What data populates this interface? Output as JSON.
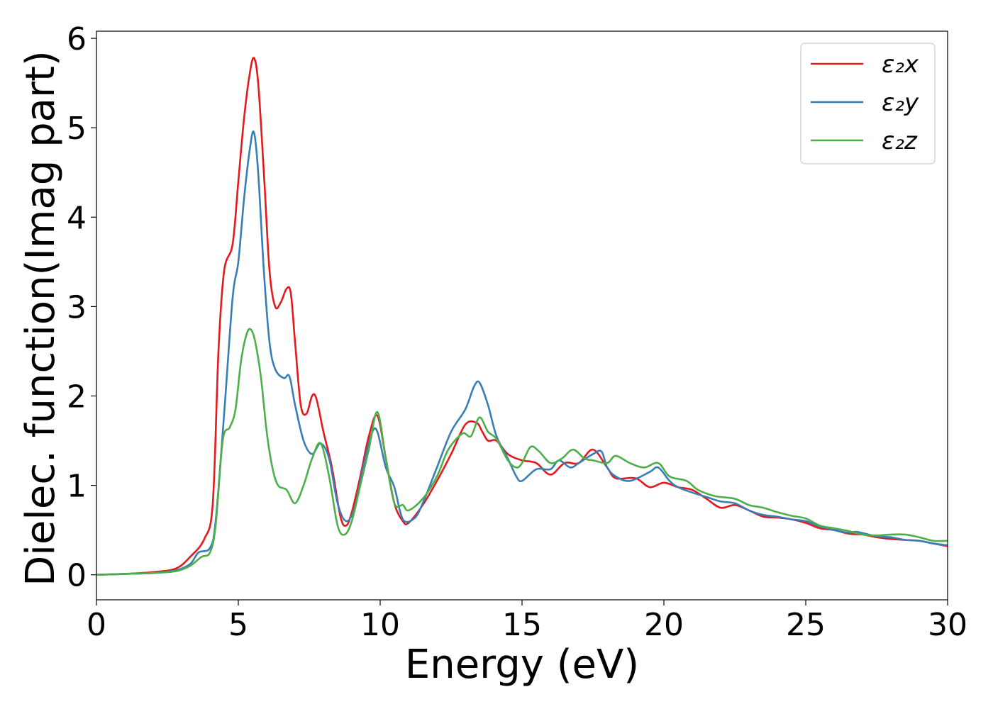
{
  "chart_data": {
    "type": "line",
    "xlabel": "Energy (eV)",
    "ylabel": "Dielec. function(Imag part)",
    "xlim": [
      0,
      30
    ],
    "ylim": [
      -0.28,
      6.08
    ],
    "xticks": [
      "0",
      "5",
      "10",
      "15",
      "20",
      "25",
      "30"
    ],
    "yticks": [
      "0",
      "1",
      "2",
      "3",
      "4",
      "5",
      "6"
    ],
    "grid": false,
    "legend_position": "top-right",
    "series": [
      {
        "name": "ε₂x",
        "color": "#e41a1c",
        "points": [
          [
            0,
            0.0
          ],
          [
            1,
            0.01
          ],
          [
            2,
            0.03
          ],
          [
            2.8,
            0.07
          ],
          [
            3.3,
            0.2
          ],
          [
            3.8,
            0.4
          ],
          [
            4.1,
            0.8
          ],
          [
            4.3,
            2.5
          ],
          [
            4.5,
            3.4
          ],
          [
            4.8,
            3.7
          ],
          [
            5.0,
            4.4
          ],
          [
            5.2,
            5.1
          ],
          [
            5.4,
            5.6
          ],
          [
            5.55,
            5.78
          ],
          [
            5.7,
            5.5
          ],
          [
            5.9,
            4.5
          ],
          [
            6.1,
            3.4
          ],
          [
            6.3,
            3.0
          ],
          [
            6.5,
            3.05
          ],
          [
            6.7,
            3.2
          ],
          [
            6.85,
            3.15
          ],
          [
            7.0,
            2.6
          ],
          [
            7.2,
            1.9
          ],
          [
            7.4,
            1.8
          ],
          [
            7.6,
            2.0
          ],
          [
            7.75,
            1.97
          ],
          [
            8.0,
            1.6
          ],
          [
            8.3,
            1.2
          ],
          [
            8.6,
            0.65
          ],
          [
            8.8,
            0.55
          ],
          [
            9.0,
            0.7
          ],
          [
            9.3,
            1.1
          ],
          [
            9.6,
            1.55
          ],
          [
            9.9,
            1.78
          ],
          [
            10.2,
            1.3
          ],
          [
            10.5,
            0.8
          ],
          [
            10.8,
            0.6
          ],
          [
            11.0,
            0.58
          ],
          [
            11.5,
            0.78
          ],
          [
            12.0,
            1.05
          ],
          [
            12.5,
            1.35
          ],
          [
            13.0,
            1.68
          ],
          [
            13.4,
            1.7
          ],
          [
            13.6,
            1.6
          ],
          [
            13.8,
            1.5
          ],
          [
            14.1,
            1.5
          ],
          [
            14.5,
            1.35
          ],
          [
            15.0,
            1.28
          ],
          [
            15.5,
            1.25
          ],
          [
            16.0,
            1.12
          ],
          [
            16.5,
            1.25
          ],
          [
            17.0,
            1.25
          ],
          [
            17.5,
            1.4
          ],
          [
            18.0,
            1.2
          ],
          [
            18.3,
            1.08
          ],
          [
            19.0,
            1.08
          ],
          [
            19.5,
            0.98
          ],
          [
            20.0,
            1.03
          ],
          [
            20.5,
            0.98
          ],
          [
            21.0,
            0.95
          ],
          [
            21.5,
            0.85
          ],
          [
            22.0,
            0.75
          ],
          [
            22.5,
            0.78
          ],
          [
            23.0,
            0.72
          ],
          [
            23.5,
            0.65
          ],
          [
            24.0,
            0.64
          ],
          [
            24.5,
            0.62
          ],
          [
            25.0,
            0.58
          ],
          [
            25.5,
            0.52
          ],
          [
            26.0,
            0.5
          ],
          [
            26.5,
            0.46
          ],
          [
            27.0,
            0.45
          ],
          [
            27.5,
            0.42
          ],
          [
            28.0,
            0.4
          ],
          [
            28.5,
            0.39
          ],
          [
            29.0,
            0.38
          ],
          [
            29.5,
            0.35
          ],
          [
            30.0,
            0.32
          ]
        ]
      },
      {
        "name": "ε₂y",
        "color": "#377eb8",
        "points": [
          [
            0,
            0.0
          ],
          [
            1,
            0.01
          ],
          [
            2,
            0.02
          ],
          [
            2.8,
            0.05
          ],
          [
            3.3,
            0.12
          ],
          [
            3.6,
            0.25
          ],
          [
            4.0,
            0.3
          ],
          [
            4.2,
            0.6
          ],
          [
            4.5,
            1.8
          ],
          [
            4.8,
            3.1
          ],
          [
            5.0,
            3.5
          ],
          [
            5.2,
            4.2
          ],
          [
            5.4,
            4.75
          ],
          [
            5.55,
            4.95
          ],
          [
            5.7,
            4.5
          ],
          [
            5.9,
            3.4
          ],
          [
            6.1,
            2.6
          ],
          [
            6.3,
            2.3
          ],
          [
            6.6,
            2.2
          ],
          [
            6.8,
            2.22
          ],
          [
            7.0,
            1.9
          ],
          [
            7.3,
            1.5
          ],
          [
            7.6,
            1.35
          ],
          [
            7.9,
            1.47
          ],
          [
            8.2,
            1.3
          ],
          [
            8.5,
            0.8
          ],
          [
            8.8,
            0.6
          ],
          [
            9.1,
            0.75
          ],
          [
            9.4,
            1.2
          ],
          [
            9.7,
            1.58
          ],
          [
            9.9,
            1.6
          ],
          [
            10.2,
            1.2
          ],
          [
            10.5,
            0.98
          ],
          [
            10.8,
            0.62
          ],
          [
            11.2,
            0.63
          ],
          [
            11.5,
            0.8
          ],
          [
            12.0,
            1.2
          ],
          [
            12.5,
            1.6
          ],
          [
            13.0,
            1.85
          ],
          [
            13.3,
            2.1
          ],
          [
            13.5,
            2.15
          ],
          [
            13.8,
            1.9
          ],
          [
            14.1,
            1.55
          ],
          [
            14.5,
            1.3
          ],
          [
            14.8,
            1.1
          ],
          [
            15.0,
            1.05
          ],
          [
            15.5,
            1.18
          ],
          [
            16.0,
            1.18
          ],
          [
            16.3,
            1.28
          ],
          [
            16.7,
            1.2
          ],
          [
            17.0,
            1.25
          ],
          [
            17.5,
            1.35
          ],
          [
            17.8,
            1.38
          ],
          [
            18.0,
            1.2
          ],
          [
            18.3,
            1.1
          ],
          [
            18.8,
            1.05
          ],
          [
            19.5,
            1.15
          ],
          [
            19.8,
            1.2
          ],
          [
            20.2,
            1.05
          ],
          [
            20.5,
            0.98
          ],
          [
            21.0,
            0.92
          ],
          [
            21.5,
            0.87
          ],
          [
            22.0,
            0.82
          ],
          [
            22.5,
            0.8
          ],
          [
            23.0,
            0.72
          ],
          [
            23.5,
            0.67
          ],
          [
            24.0,
            0.65
          ],
          [
            24.5,
            0.62
          ],
          [
            25.0,
            0.6
          ],
          [
            25.5,
            0.54
          ],
          [
            26.0,
            0.5
          ],
          [
            26.5,
            0.47
          ],
          [
            26.8,
            0.48
          ],
          [
            27.5,
            0.43
          ],
          [
            28.0,
            0.42
          ],
          [
            28.5,
            0.39
          ],
          [
            29.0,
            0.38
          ],
          [
            29.5,
            0.35
          ],
          [
            30.0,
            0.33
          ]
        ]
      },
      {
        "name": "ε₂z",
        "color": "#4daf4a",
        "points": [
          [
            0,
            0.0
          ],
          [
            1,
            0.01
          ],
          [
            2,
            0.02
          ],
          [
            2.8,
            0.04
          ],
          [
            3.3,
            0.1
          ],
          [
            3.7,
            0.2
          ],
          [
            4.0,
            0.25
          ],
          [
            4.2,
            0.55
          ],
          [
            4.45,
            1.5
          ],
          [
            4.7,
            1.65
          ],
          [
            4.9,
            1.85
          ],
          [
            5.1,
            2.4
          ],
          [
            5.3,
            2.7
          ],
          [
            5.45,
            2.74
          ],
          [
            5.6,
            2.6
          ],
          [
            5.8,
            2.2
          ],
          [
            6.0,
            1.6
          ],
          [
            6.2,
            1.2
          ],
          [
            6.4,
            1.0
          ],
          [
            6.7,
            0.95
          ],
          [
            7.0,
            0.8
          ],
          [
            7.3,
            1.0
          ],
          [
            7.6,
            1.3
          ],
          [
            7.9,
            1.47
          ],
          [
            8.2,
            1.1
          ],
          [
            8.5,
            0.55
          ],
          [
            8.75,
            0.45
          ],
          [
            9.0,
            0.6
          ],
          [
            9.3,
            1.0
          ],
          [
            9.6,
            1.4
          ],
          [
            9.9,
            1.82
          ],
          [
            10.2,
            1.3
          ],
          [
            10.5,
            0.8
          ],
          [
            10.8,
            0.78
          ],
          [
            11.0,
            0.72
          ],
          [
            11.5,
            0.85
          ],
          [
            12.0,
            1.1
          ],
          [
            12.4,
            1.4
          ],
          [
            12.9,
            1.58
          ],
          [
            13.2,
            1.55
          ],
          [
            13.5,
            1.76
          ],
          [
            13.8,
            1.6
          ],
          [
            14.1,
            1.52
          ],
          [
            14.5,
            1.28
          ],
          [
            14.8,
            1.2
          ],
          [
            15.0,
            1.25
          ],
          [
            15.3,
            1.43
          ],
          [
            15.6,
            1.38
          ],
          [
            16.0,
            1.25
          ],
          [
            16.4,
            1.3
          ],
          [
            16.8,
            1.4
          ],
          [
            17.2,
            1.3
          ],
          [
            17.5,
            1.28
          ],
          [
            18.0,
            1.25
          ],
          [
            18.3,
            1.33
          ],
          [
            18.8,
            1.25
          ],
          [
            19.3,
            1.2
          ],
          [
            19.8,
            1.25
          ],
          [
            20.2,
            1.1
          ],
          [
            20.8,
            1.05
          ],
          [
            21.2,
            0.95
          ],
          [
            21.8,
            0.88
          ],
          [
            22.5,
            0.85
          ],
          [
            23.0,
            0.78
          ],
          [
            23.5,
            0.75
          ],
          [
            24.0,
            0.7
          ],
          [
            24.5,
            0.66
          ],
          [
            25.0,
            0.63
          ],
          [
            25.5,
            0.55
          ],
          [
            26.0,
            0.52
          ],
          [
            26.5,
            0.49
          ],
          [
            27.0,
            0.45
          ],
          [
            27.5,
            0.44
          ],
          [
            28.0,
            0.45
          ],
          [
            28.5,
            0.45
          ],
          [
            29.0,
            0.42
          ],
          [
            29.5,
            0.38
          ],
          [
            30.0,
            0.38
          ]
        ]
      }
    ]
  }
}
